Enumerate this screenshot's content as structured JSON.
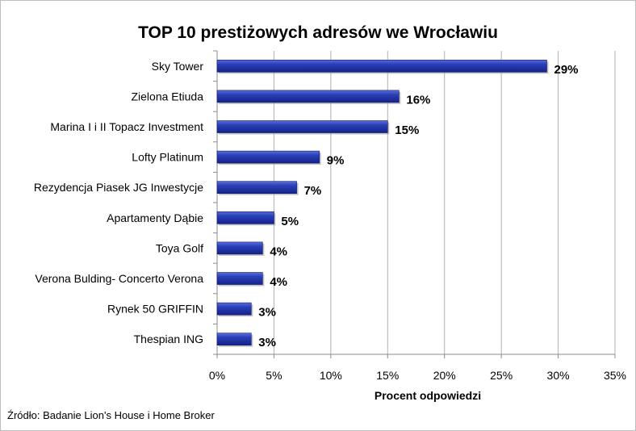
{
  "chart_data": {
    "type": "bar",
    "orientation": "horizontal",
    "title": "TOP 10 prestiżowych adresów we Wrocławiu",
    "xlabel": "Procent odpowiedzi",
    "ylabel": "",
    "xlim": [
      0,
      35
    ],
    "x_ticks": [
      "0%",
      "5%",
      "10%",
      "15%",
      "20%",
      "25%",
      "30%",
      "35%"
    ],
    "x_tick_values": [
      0,
      5,
      10,
      15,
      20,
      25,
      30,
      35
    ],
    "grid": true,
    "legend": "none",
    "bar_color": "#2236a8",
    "categories": [
      "Sky Tower",
      "Zielona Etiuda",
      "Marina I i II Topacz Investment",
      "Lofty Platinum",
      "Rezydencja Piasek JG Inwestycje",
      "Apartamenty Dąbie",
      "Toya Golf",
      "Verona Bulding- Concerto Verona",
      "Rynek 50 GRIFFIN",
      "Thespian ING"
    ],
    "values": [
      29,
      16,
      15,
      9,
      7,
      5,
      4,
      4,
      3,
      3
    ],
    "data_labels": [
      "29%",
      "16%",
      "15%",
      "9%",
      "7%",
      "5%",
      "4%",
      "4%",
      "3%",
      "3%"
    ]
  },
  "source_note": "Źródło: Badanie Lion's House i Home Broker"
}
